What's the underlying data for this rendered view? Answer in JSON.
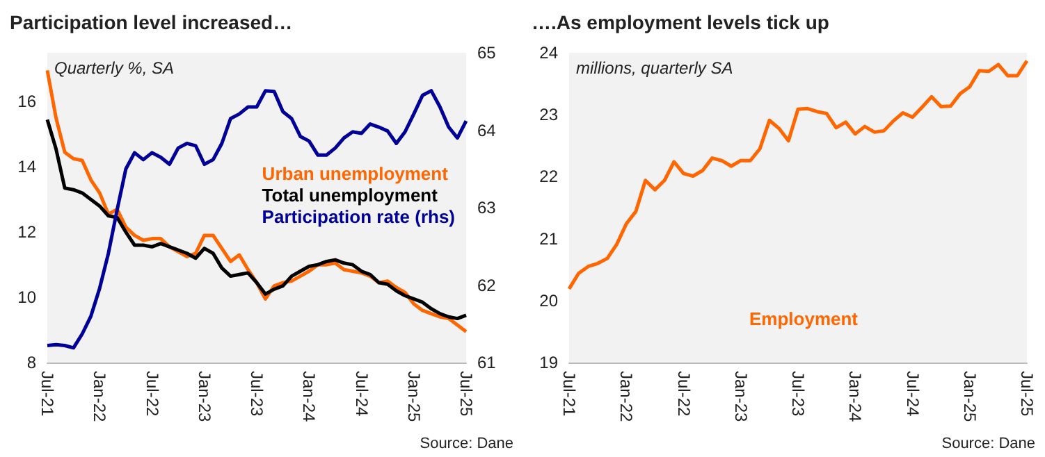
{
  "chart_data": [
    {
      "type": "line",
      "title": "Participation level increased…",
      "subtitle": "Quarterly %, SA",
      "categories": [
        "Jul-21",
        null,
        null,
        null,
        null,
        null,
        "Jan-22",
        null,
        null,
        null,
        null,
        null,
        "Jul-22",
        null,
        null,
        null,
        null,
        null,
        "Jan-23",
        null,
        null,
        null,
        null,
        null,
        "Jul-23",
        null,
        null,
        null,
        null,
        null,
        "Jan-24",
        null,
        null,
        null,
        null,
        null,
        "Jul-24",
        null,
        null,
        null,
        null,
        null,
        "Jan-25",
        null,
        null,
        null,
        null,
        null,
        "Jul-25"
      ],
      "series": [
        {
          "name": "Urban unemployment",
          "color": "#ff6600",
          "values": [
            16.96,
            15.5,
            14.45,
            14.25,
            14.2,
            13.6,
            13.2,
            12.55,
            12.7,
            12.15,
            11.9,
            11.75,
            11.8,
            11.8,
            11.55,
            11.4,
            11.25,
            11.35,
            11.9,
            11.9,
            11.5,
            11.1,
            11.3,
            10.85,
            10.45,
            9.95,
            10.35,
            10.45,
            10.5,
            10.65,
            10.8,
            11.0,
            11.0,
            11.05,
            10.85,
            10.8,
            10.75,
            10.65,
            10.45,
            10.5,
            10.3,
            10.15,
            9.8,
            9.6,
            9.5,
            9.4,
            9.35,
            9.15,
            8.95
          ]
        },
        {
          "name": "Total unemployment",
          "color": "#000000",
          "values": [
            15.45,
            14.55,
            13.35,
            13.3,
            13.2,
            13.0,
            12.8,
            12.5,
            12.45,
            12.0,
            11.6,
            11.6,
            11.55,
            11.65,
            11.55,
            11.45,
            11.35,
            11.2,
            11.5,
            11.35,
            10.9,
            10.65,
            10.7,
            10.75,
            10.45,
            10.1,
            10.25,
            10.35,
            10.65,
            10.8,
            10.95,
            11.0,
            11.1,
            11.15,
            11.05,
            11.0,
            10.8,
            10.7,
            10.45,
            10.4,
            10.2,
            10.05,
            9.95,
            9.85,
            9.65,
            9.5,
            9.4,
            9.35,
            9.45
          ]
        },
        {
          "name": "Participation rate (rhs)",
          "color": "#000099",
          "axis": "y2",
          "values": [
            61.22,
            61.23,
            61.22,
            61.19,
            61.37,
            61.6,
            61.96,
            62.41,
            62.97,
            63.5,
            63.71,
            63.62,
            63.71,
            63.65,
            63.56,
            63.77,
            63.83,
            63.8,
            63.56,
            63.62,
            63.83,
            64.15,
            64.21,
            64.3,
            64.3,
            64.51,
            64.5,
            64.24,
            64.15,
            63.92,
            63.86,
            63.68,
            63.68,
            63.77,
            63.9,
            63.98,
            63.96,
            64.08,
            64.04,
            63.99,
            63.83,
            63.98,
            64.21,
            64.45,
            64.51,
            64.3,
            64.04,
            63.9,
            64.12
          ]
        }
      ],
      "ylim": [
        8,
        17.5
      ],
      "yticks": [
        8,
        10,
        12,
        14,
        16
      ],
      "y2lim": [
        61,
        65
      ],
      "y2ticks": [
        61,
        62,
        63,
        64,
        65
      ],
      "legend": "right",
      "marker": "none",
      "grid": false,
      "annotations": [
        "Source: Dane"
      ]
    },
    {
      "type": "line",
      "title": "….As employment levels tick up",
      "subtitle": "millions, quarterly SA",
      "categories": [
        "Jul-21",
        null,
        null,
        null,
        null,
        null,
        "Jan-22",
        null,
        null,
        null,
        null,
        null,
        "Jul-22",
        null,
        null,
        null,
        null,
        null,
        "Jan-23",
        null,
        null,
        null,
        null,
        null,
        "Jul-23",
        null,
        null,
        null,
        null,
        null,
        "Jan-24",
        null,
        null,
        null,
        null,
        null,
        "Jul-24",
        null,
        null,
        null,
        null,
        null,
        "Jan-25",
        null,
        null,
        null,
        null,
        null,
        "Jul-25"
      ],
      "series": [
        {
          "name": "Employment",
          "color": "#ff6600",
          "values": [
            20.19,
            20.44,
            20.55,
            20.6,
            20.68,
            20.91,
            21.24,
            21.44,
            21.94,
            21.79,
            21.94,
            22.24,
            22.05,
            22.01,
            22.1,
            22.3,
            22.26,
            22.17,
            22.26,
            22.26,
            22.45,
            22.91,
            22.78,
            22.58,
            23.09,
            23.1,
            23.05,
            23.02,
            22.79,
            22.88,
            22.69,
            22.81,
            22.72,
            22.74,
            22.9,
            23.03,
            22.96,
            23.12,
            23.29,
            23.13,
            23.14,
            23.34,
            23.45,
            23.71,
            23.7,
            23.81,
            23.63,
            23.63,
            23.87
          ]
        }
      ],
      "ylim": [
        19,
        24
      ],
      "yticks": [
        19,
        20,
        21,
        22,
        23,
        24
      ],
      "legend": "bottom",
      "marker": "none",
      "grid": false,
      "annotations": [
        "Source: Dane"
      ]
    }
  ]
}
